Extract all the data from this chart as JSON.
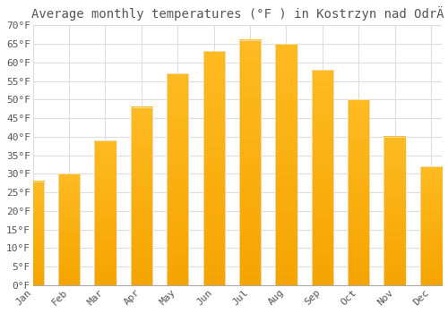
{
  "title": "Average monthly temperatures (°F ) in Kostrzyn nad OdrÄ",
  "months": [
    "Jan",
    "Feb",
    "Mar",
    "Apr",
    "May",
    "Jun",
    "Jul",
    "Aug",
    "Sep",
    "Oct",
    "Nov",
    "Dec"
  ],
  "values": [
    28,
    30,
    39,
    48,
    57,
    63,
    66,
    65,
    58,
    50,
    40,
    32
  ],
  "bar_color_top": "#FFBB22",
  "bar_color_bottom": "#F5A500",
  "bar_edge_color": "#E8E8E8",
  "background_color": "#FFFFFF",
  "grid_color": "#DDDDDD",
  "text_color": "#555555",
  "ylim": [
    0,
    70
  ],
  "ytick_step": 5,
  "title_fontsize": 10,
  "tick_fontsize": 8,
  "figsize": [
    5.0,
    3.5
  ],
  "dpi": 100
}
